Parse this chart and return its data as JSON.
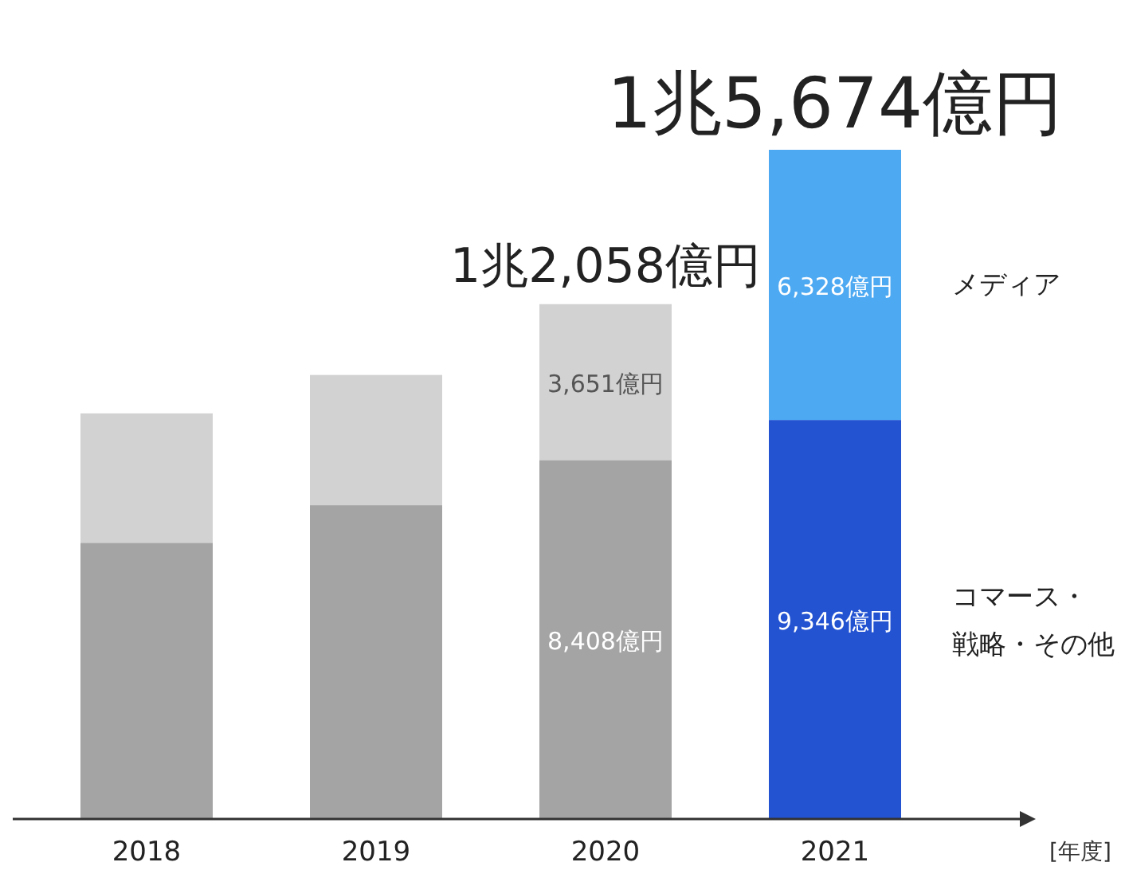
{
  "chart_data": {
    "type": "bar",
    "stacked": true,
    "xlabel": "[年度]",
    "categories": [
      "2018",
      "2019",
      "2020",
      "2021"
    ],
    "series": [
      {
        "name": "コマース・戦略・その他",
        "colors": [
          "#a4a4a4",
          "#a4a4a4",
          "#a4a4a4",
          "#2453d2"
        ],
        "values": [
          6470,
          7350,
          8408,
          9346
        ],
        "value_labels": [
          null,
          null,
          "8,408億円",
          "9,346億円"
        ]
      },
      {
        "name": "メディア",
        "colors": [
          "#d2d2d2",
          "#d2d2d2",
          "#d2d2d2",
          "#4da9f2"
        ],
        "values": [
          3030,
          3050,
          3651,
          6328
        ],
        "value_labels": [
          null,
          null,
          "3,651億円",
          "6,328億円"
        ]
      }
    ],
    "totals": [
      null,
      null,
      "1兆2,058億円",
      "1兆5,674億円"
    ]
  }
}
